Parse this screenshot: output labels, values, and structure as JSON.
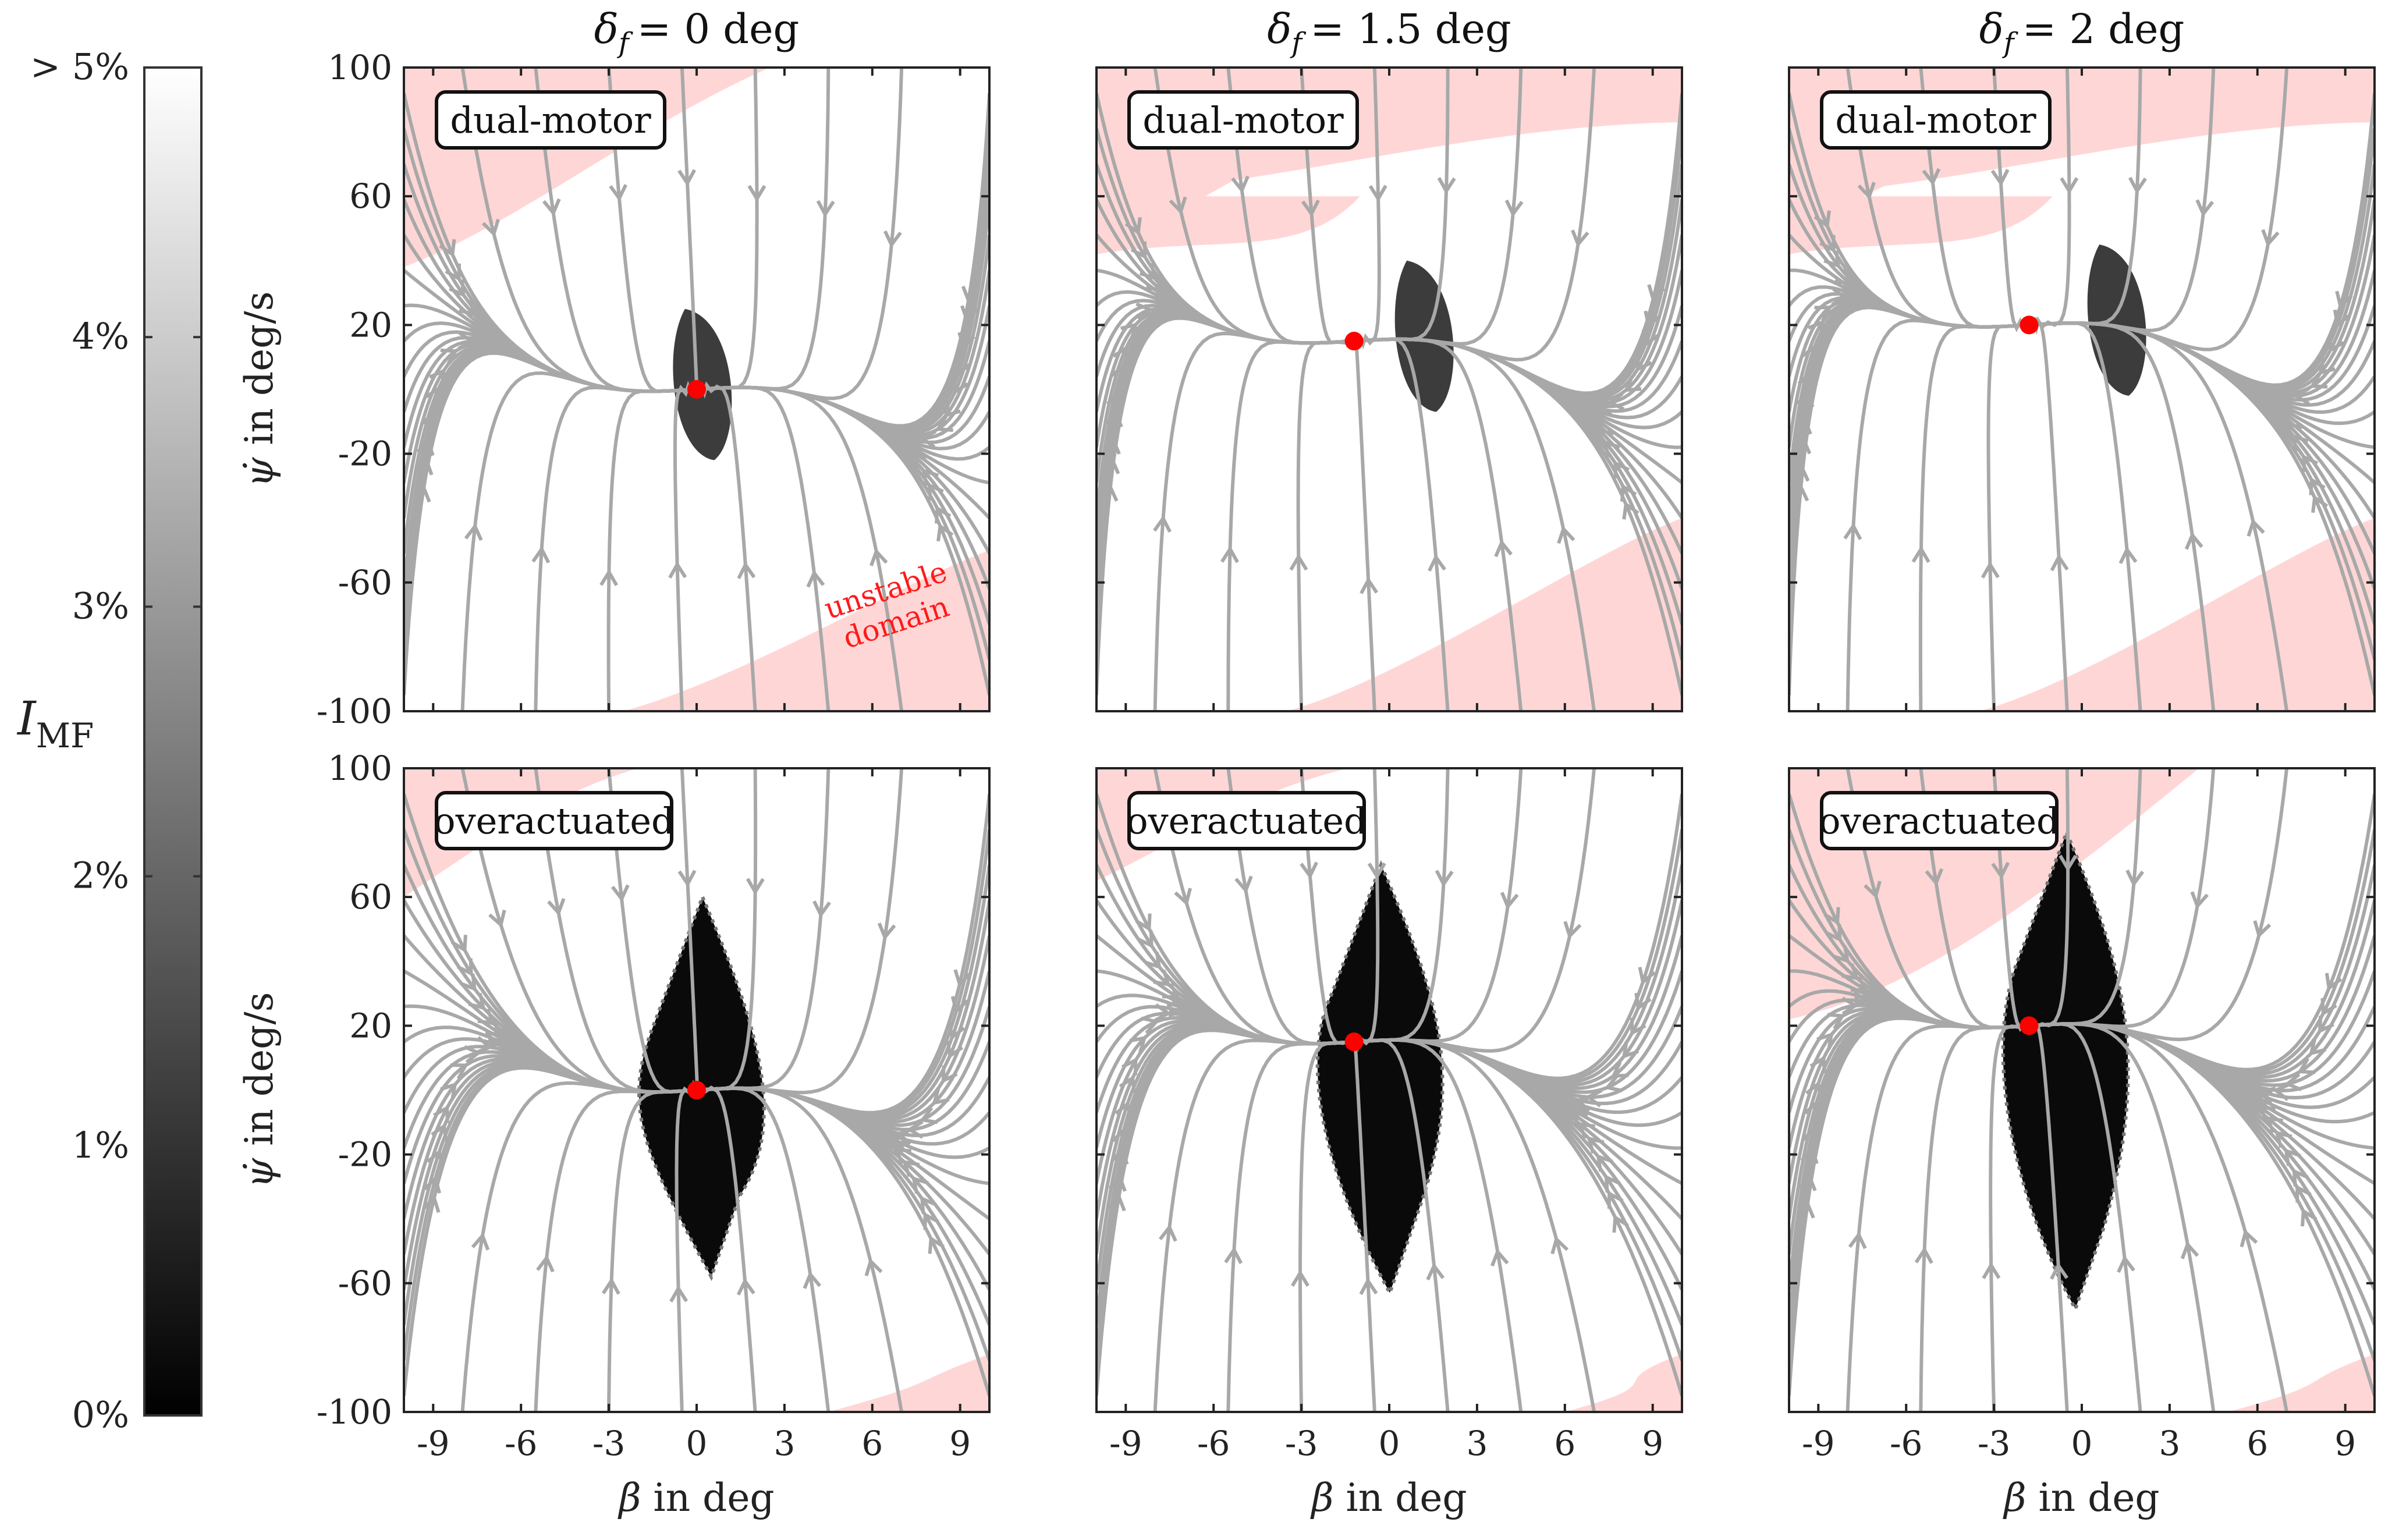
{
  "chart_data": {
    "type": "streamplot-grid",
    "columns": [
      {
        "title_symbol": "δf",
        "title_sub": "f",
        "title_value": "= 0 deg",
        "eq_beta": 0,
        "eq_r": 0
      },
      {
        "title_symbol": "δf",
        "title_sub": "f",
        "title_value": "= 1.5 deg",
        "eq_beta": -1.2,
        "eq_r": 15
      },
      {
        "title_symbol": "δf",
        "title_sub": "f",
        "title_value": "= 2 deg",
        "eq_beta": -1.8,
        "eq_r": 20
      }
    ],
    "rows": [
      {
        "label": "dual-motor"
      },
      {
        "label": "overactuated"
      }
    ],
    "xlabel_symbol": "β",
    "xlabel_text": " in deg",
    "ylabel_symbol": "ψ̇",
    "ylabel_text": " in deg/s",
    "xlim": [
      -10,
      10
    ],
    "ylim": [
      -100,
      100
    ],
    "xticks": [
      "-9",
      "-6",
      "-3",
      "0",
      "3",
      "6",
      "9"
    ],
    "yticks": [
      "100",
      "60",
      "20",
      "-20",
      "-60",
      "-100"
    ],
    "ytick_values": [
      100,
      60,
      20,
      -20,
      -60,
      -100
    ],
    "xtick_values": [
      -9,
      -6,
      -3,
      0,
      3,
      6,
      9
    ],
    "colorbar": {
      "label_main": "I",
      "label_sub": "MF",
      "ticks": [
        "> 5%",
        "4%",
        "3%",
        "2%",
        "1%",
        "0%"
      ],
      "tick_values": [
        5,
        4,
        3,
        2,
        1,
        0
      ],
      "range": [
        0,
        5
      ]
    },
    "annotations": [
      {
        "panel": "row0-col0",
        "text_lines": [
          "unstable",
          "domain"
        ]
      }
    ],
    "colors": {
      "unstable": "#ffd6d6",
      "streamline": "#a8a8a8",
      "equilibrium": "#ff0000",
      "low_impact": "#000000"
    }
  }
}
